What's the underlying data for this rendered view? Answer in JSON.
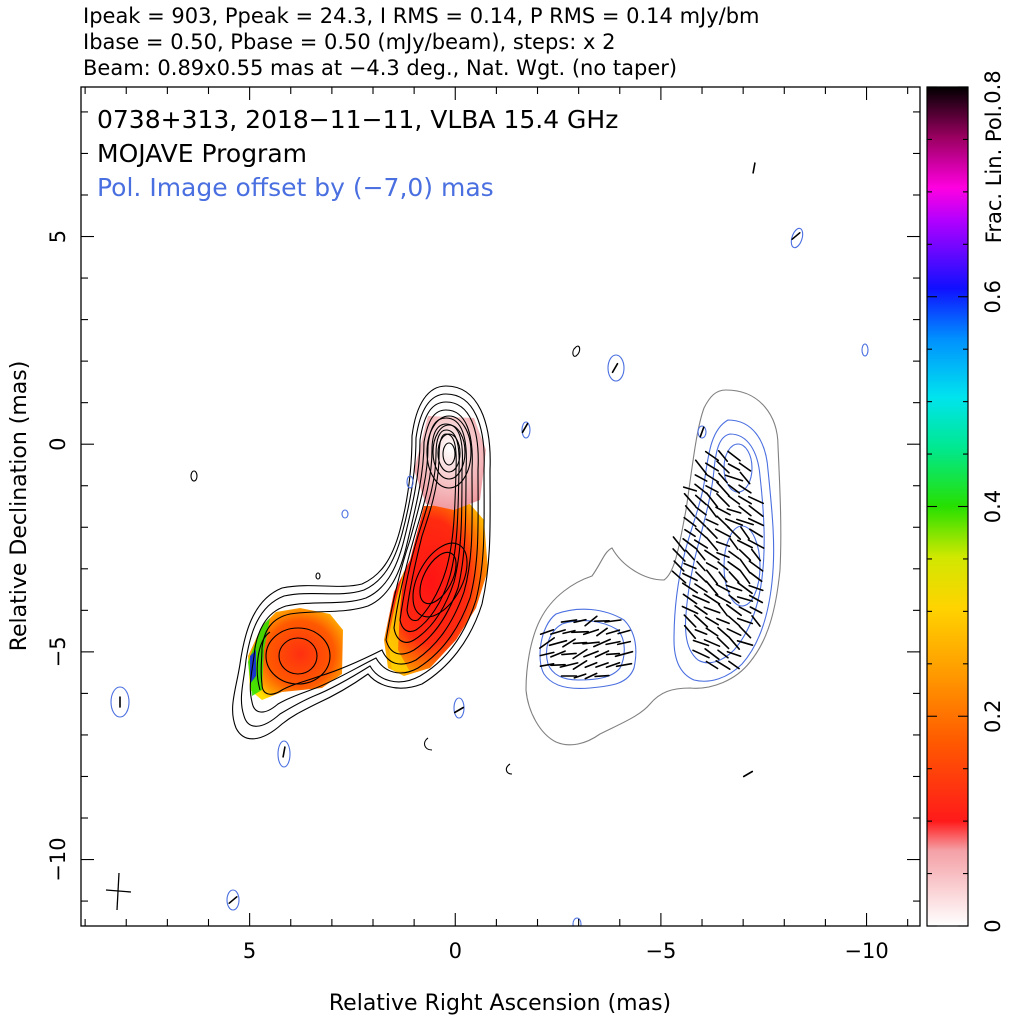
{
  "header": {
    "line1": "Ipeak = 903, Ppeak = 24.3, I RMS = 0.14, P RMS = 0.14 mJy/bm",
    "line2": "Ibase = 0.50, Pbase = 0.50 (mJy/beam), steps: x 2",
    "line3": "Beam: 0.89x0.55 mas at −4.3 deg., Nat. Wgt. (no taper)"
  },
  "annotations": {
    "source": "0738+313, 2018−11−11, VLBA 15.4 GHz",
    "program": "MOJAVE Program",
    "offset_note": "Pol. Image offset by (−7,0) mas",
    "offset_color": "#4a6fe0"
  },
  "colors": {
    "stokes_i_contours": "#000000",
    "pol_contours": "#4a6fe0",
    "evpa_ticks": "#000000",
    "offset_i_contour": "#808080"
  },
  "chart_data": {
    "type": "heatmap",
    "xlabel": "Relative Right Ascension (mas)",
    "ylabel": "Relative Declination (mas)",
    "xlim": [
      9.1,
      -11.3
    ],
    "ylim": [
      -11.6,
      8.6
    ],
    "x_ticks": [
      5,
      0,
      -5,
      -10
    ],
    "y_ticks": [
      5,
      0,
      -5,
      -10
    ],
    "x_tick_labels": [
      "5",
      "0",
      "−5",
      "−10"
    ],
    "y_tick_labels": [
      "5",
      "0",
      "−5",
      "−10"
    ],
    "colorbar": {
      "label": "Frac. Lin. Pol.",
      "range": [
        0,
        0.8
      ],
      "ticks": [
        0,
        0.2,
        0.4,
        0.6,
        0.8
      ],
      "tick_labels": [
        "0",
        "0.2",
        "0.4",
        "0.6",
        "0.8"
      ]
    },
    "stokes_i_peak": [
      0,
      0
    ],
    "fractional_pol_regions": [
      {
        "x": 0.1,
        "y": -3.3,
        "rx": 1.0,
        "ry": 1.75,
        "value": 0.1
      },
      {
        "x": 3.9,
        "y": -5.0,
        "rx": 1.2,
        "ry": 0.95,
        "value": 0.13
      }
    ],
    "beam": {
      "major": 0.89,
      "minor": 0.55,
      "pa_deg": -4.3
    }
  }
}
